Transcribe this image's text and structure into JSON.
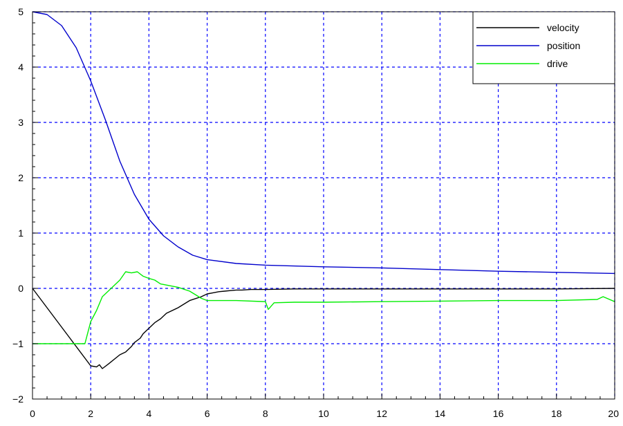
{
  "chart_data": {
    "type": "line",
    "title": "",
    "xlabel": "",
    "ylabel": "",
    "xlim": [
      0,
      20
    ],
    "ylim": [
      -2,
      5
    ],
    "x_ticks": [
      0,
      2,
      4,
      6,
      8,
      10,
      12,
      14,
      16,
      18,
      20
    ],
    "y_ticks": [
      -2,
      -1,
      0,
      1,
      2,
      3,
      4,
      5
    ],
    "x_tick_labels": [
      "0",
      "2",
      "4",
      "6",
      "8",
      "10",
      "12",
      "14",
      "16",
      "18",
      "20"
    ],
    "y_tick_labels": [
      "−2",
      "−1",
      "0",
      "1",
      "2",
      "3",
      "4",
      "5"
    ],
    "grid": true,
    "grid_style": "dashed",
    "grid_color": "#0000ff",
    "legend_position": "top-right",
    "series": [
      {
        "name": "velocity",
        "color": "#000000",
        "x": [
          0,
          1.0,
          2.0,
          2.2,
          2.3,
          2.4,
          2.6,
          3.0,
          3.2,
          3.4,
          3.5,
          3.7,
          3.8,
          4.0,
          4.2,
          4.4,
          4.6,
          5.0,
          5.4,
          5.8,
          6.0,
          6.2,
          6.4,
          6.6,
          6.8,
          7.0,
          7.2,
          7.5,
          8.0,
          9.0,
          10.0,
          12.0,
          14.0,
          16.0,
          18.0,
          20.0
        ],
        "y": [
          0,
          -0.7,
          -1.4,
          -1.42,
          -1.38,
          -1.45,
          -1.37,
          -1.2,
          -1.15,
          -1.05,
          -0.98,
          -0.9,
          -0.82,
          -0.72,
          -0.62,
          -0.55,
          -0.45,
          -0.35,
          -0.22,
          -0.15,
          -0.1,
          -0.08,
          -0.06,
          -0.05,
          -0.04,
          -0.03,
          -0.03,
          -0.02,
          -0.02,
          -0.01,
          -0.01,
          -0.01,
          -0.01,
          -0.01,
          -0.01,
          0
        ]
      },
      {
        "name": "position",
        "color": "#0000cc",
        "x": [
          0,
          0.5,
          1.0,
          1.5,
          2.0,
          2.5,
          3.0,
          3.5,
          4.0,
          4.5,
          5.0,
          5.5,
          6.0,
          7.0,
          8.0,
          10.0,
          12.0,
          14.0,
          16.0,
          18.0,
          20.0
        ],
        "y": [
          5.0,
          4.95,
          4.75,
          4.35,
          3.75,
          3.05,
          2.3,
          1.7,
          1.25,
          0.95,
          0.75,
          0.6,
          0.52,
          0.45,
          0.42,
          0.39,
          0.37,
          0.34,
          0.31,
          0.29,
          0.27
        ]
      },
      {
        "name": "drive",
        "color": "#00ee00",
        "x": [
          0,
          1.0,
          1.8,
          2.0,
          2.2,
          2.4,
          2.6,
          2.8,
          3.0,
          3.2,
          3.4,
          3.6,
          3.8,
          4.0,
          4.2,
          4.4,
          4.6,
          4.8,
          5.0,
          5.4,
          5.8,
          6.0,
          7.0,
          8.0,
          8.1,
          8.3,
          9.0,
          10.0,
          12.0,
          14.0,
          16.0,
          18.0,
          19.4,
          19.6,
          20.0
        ],
        "y": [
          -1.0,
          -1.0,
          -1.0,
          -0.6,
          -0.4,
          -0.15,
          -0.05,
          0.05,
          0.15,
          0.3,
          0.28,
          0.3,
          0.22,
          0.18,
          0.15,
          0.08,
          0.06,
          0.04,
          0.02,
          -0.05,
          -0.18,
          -0.22,
          -0.22,
          -0.24,
          -0.38,
          -0.26,
          -0.25,
          -0.25,
          -0.24,
          -0.23,
          -0.22,
          -0.22,
          -0.2,
          -0.15,
          -0.24
        ]
      }
    ]
  }
}
